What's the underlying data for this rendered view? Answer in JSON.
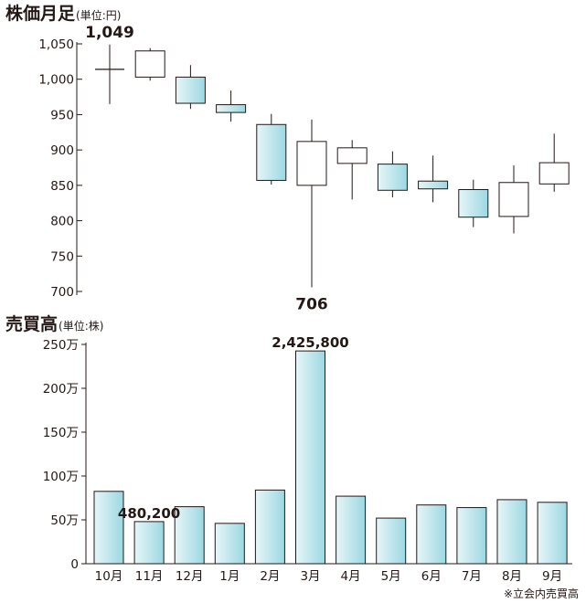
{
  "price_chart": {
    "title": "株価月足",
    "unit": "(単位:円)"
  },
  "volume_chart": {
    "title": "売買高",
    "unit": "(単位:株)"
  },
  "footnote": "※立会内売買高",
  "colors": {
    "bar_light": "#e6f6f8",
    "bar_dark": "#9cd8e2",
    "outline": "#231815",
    "hollow": "#ffffff"
  },
  "chart_data": [
    {
      "type": "candlestick",
      "title": "株価月足",
      "unit": "(単位:円)",
      "categories": [
        "10月",
        "11月",
        "12月",
        "1月",
        "2月",
        "3月",
        "4月",
        "5月",
        "6月",
        "7月",
        "8月",
        "9月"
      ],
      "ylim": [
        700,
        1050
      ],
      "yticks": [
        700,
        750,
        800,
        850,
        900,
        950,
        1000,
        1050
      ],
      "ytick_labels": [
        "700",
        "750",
        "800",
        "850",
        "900",
        "950",
        "1,000",
        "1,050"
      ],
      "candles": [
        {
          "open": 1014,
          "high": 1049,
          "low": 965,
          "close": 1014,
          "color": "doji"
        },
        {
          "open": 1003,
          "high": 1044,
          "low": 998,
          "close": 1040,
          "color": "up"
        },
        {
          "open": 1003,
          "high": 1020,
          "low": 958,
          "close": 966,
          "color": "down"
        },
        {
          "open": 964,
          "high": 984,
          "low": 940,
          "close": 953,
          "color": "down"
        },
        {
          "open": 936,
          "high": 951,
          "low": 851,
          "close": 857,
          "color": "down"
        },
        {
          "open": 850,
          "high": 943,
          "low": 706,
          "close": 912,
          "color": "up"
        },
        {
          "open": 903,
          "high": 914,
          "low": 830,
          "close": 881,
          "color": "up"
        },
        {
          "open": 880,
          "high": 898,
          "low": 833,
          "close": 843,
          "color": "down"
        },
        {
          "open": 856,
          "high": 892,
          "low": 826,
          "close": 845,
          "color": "down"
        },
        {
          "open": 844,
          "high": 858,
          "low": 791,
          "close": 805,
          "color": "down"
        },
        {
          "open": 806,
          "high": 878,
          "low": 782,
          "close": 854,
          "color": "up"
        },
        {
          "open": 852,
          "high": 923,
          "low": 841,
          "close": 882,
          "color": "up"
        }
      ],
      "annotations": [
        {
          "text": "1,049",
          "index": 0,
          "value": 1049
        },
        {
          "text": "706",
          "index": 5,
          "value": 706
        }
      ]
    },
    {
      "type": "bar",
      "title": "売買高",
      "unit": "(単位:株)",
      "categories": [
        "10月",
        "11月",
        "12月",
        "1月",
        "2月",
        "3月",
        "4月",
        "5月",
        "6月",
        "7月",
        "8月",
        "9月"
      ],
      "values": [
        825000,
        480200,
        650000,
        460000,
        840000,
        2425800,
        770000,
        520000,
        670000,
        640000,
        730000,
        700000
      ],
      "ylim": [
        0,
        2500000
      ],
      "yticks": [
        0,
        500000,
        1000000,
        1500000,
        2000000,
        2500000
      ],
      "ytick_labels": [
        "0",
        "50万",
        "100万",
        "150万",
        "200万",
        "250万"
      ],
      "annotations": [
        {
          "text": "480,200",
          "index": 1
        },
        {
          "text": "2,425,800",
          "index": 5
        }
      ]
    }
  ]
}
